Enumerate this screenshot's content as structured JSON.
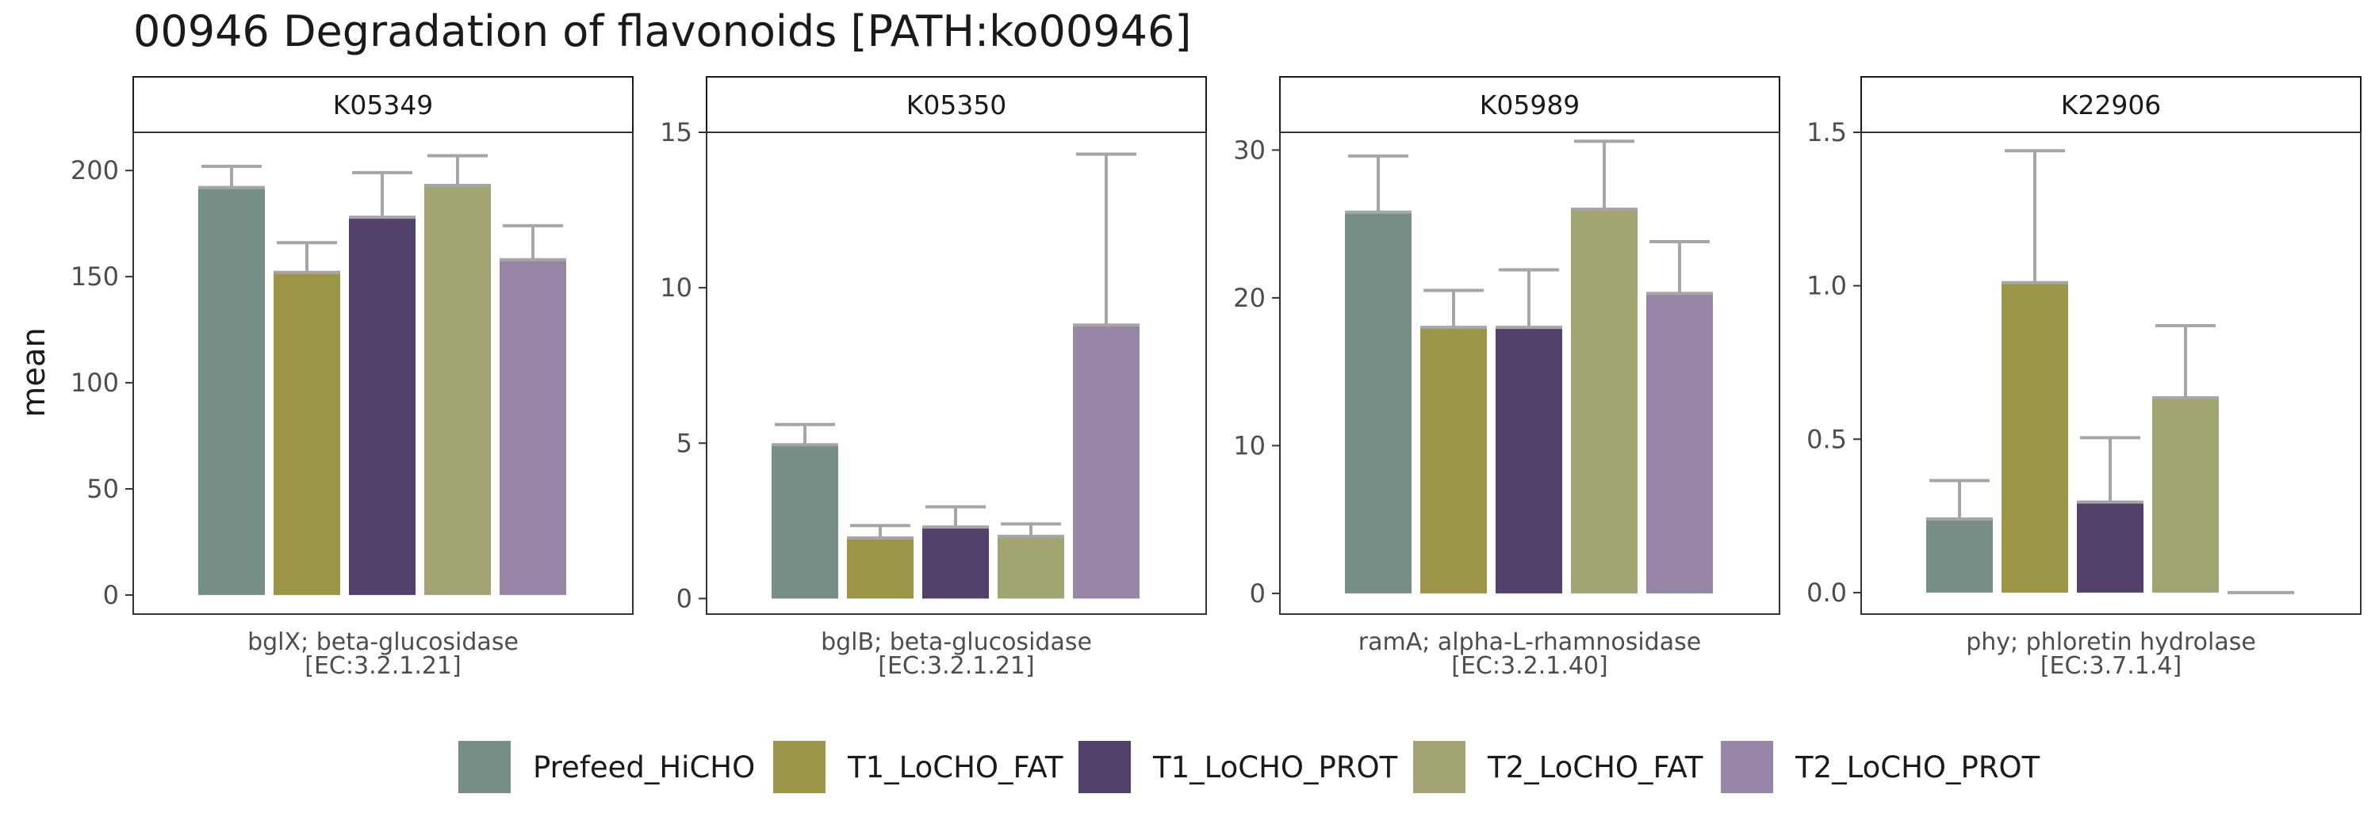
{
  "chart_data": {
    "type": "bar",
    "title": "00946 Degradation of flavonoids [PATH:ko00946]",
    "ylabel": "mean",
    "series_names": [
      "Prefeed_HiCHO",
      "T1_LoCHO_FAT",
      "T1_LoCHO_PROT",
      "T2_LoCHO_FAT",
      "T2_LoCHO_PROT"
    ],
    "colors": [
      "#788F87",
      "#9C9545",
      "#52416B",
      "#A2A474",
      "#9886A6"
    ],
    "legend_position": "bottom",
    "panels": [
      {
        "strip": "K05349",
        "xlabel": [
          "bglX; beta-glucosidase",
          "[EC:3.2.1.21]"
        ],
        "ylim": [
          -9,
          218
        ],
        "ticks": [
          0,
          50,
          100,
          150,
          200
        ],
        "tick_labels": [
          "0",
          "50",
          "100",
          "150",
          "200"
        ],
        "values": [
          192,
          152,
          178,
          193,
          158
        ],
        "upper": [
          202,
          166,
          199,
          207,
          174
        ]
      },
      {
        "strip": "K05350",
        "xlabel": [
          "bglB; beta-glucosidase",
          "[EC:3.2.1.21]"
        ],
        "ylim": [
          -0.5,
          15
        ],
        "ticks": [
          0,
          5,
          10,
          15
        ],
        "tick_labels": [
          "0",
          "5",
          "10",
          "15"
        ],
        "values": [
          4.95,
          1.95,
          2.3,
          2.0,
          8.8
        ],
        "upper": [
          5.6,
          2.35,
          2.95,
          2.4,
          14.3
        ]
      },
      {
        "strip": "K05989",
        "xlabel": [
          "ramA; alpha-L-rhamnosidase",
          "[EC:3.2.1.40]"
        ],
        "ylim": [
          -1.4,
          31.2
        ],
        "ticks": [
          0,
          10,
          20,
          30
        ],
        "tick_labels": [
          "0",
          "10",
          "20",
          "30"
        ],
        "values": [
          25.8,
          18.0,
          18.0,
          26.0,
          20.3
        ],
        "upper": [
          29.6,
          20.5,
          21.9,
          30.6,
          23.8
        ]
      },
      {
        "strip": "K22906",
        "xlabel": [
          "phy; phloretin hydrolase",
          "[EC:3.7.1.4]"
        ],
        "ylim": [
          -0.07,
          1.5
        ],
        "ticks": [
          0,
          0.5,
          1.0,
          1.5
        ],
        "tick_labels": [
          "0.0",
          "0.5",
          "1.0",
          "1.5"
        ],
        "values": [
          0.24,
          1.01,
          0.295,
          0.635,
          0.0
        ],
        "upper": [
          0.365,
          1.44,
          0.505,
          0.87,
          0.0
        ]
      }
    ]
  }
}
